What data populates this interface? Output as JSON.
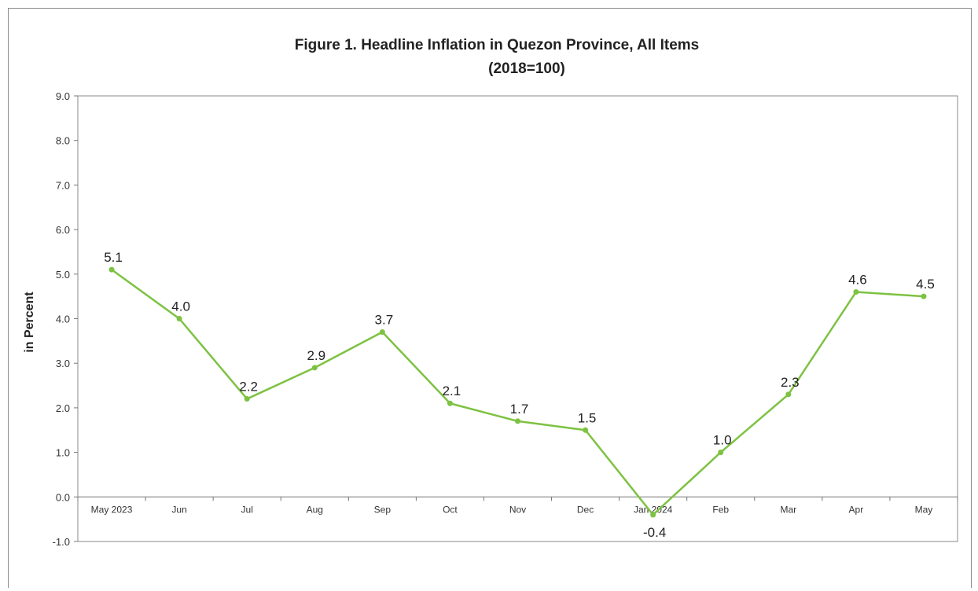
{
  "chart_data": {
    "type": "line",
    "title": "Figure 1. Headline Inflation in Quezon Province, All Items",
    "subtitle": "(2018=100)",
    "ylabel": "in Percent",
    "xlabel": "",
    "categories": [
      "May 2023",
      "Jun",
      "Jul",
      "Aug",
      "Sep",
      "Oct",
      "Nov",
      "Dec",
      "Jan 2024",
      "Feb",
      "Mar",
      "Apr",
      "May"
    ],
    "series": [
      {
        "values": [
          5.1,
          4.0,
          2.2,
          2.9,
          3.7,
          2.1,
          1.7,
          1.5,
          -0.4,
          1.0,
          2.3,
          4.6,
          4.5
        ],
        "data_labels": [
          "5.1",
          "4.0",
          "2.2",
          "2.9",
          "3.7",
          "2.1",
          "1.7",
          "1.5",
          "-0.4",
          "1.0",
          "2.3",
          "4.6",
          "4.5"
        ],
        "color": "#7dc242"
      }
    ],
    "ylim": [
      -1.0,
      9.0
    ],
    "yticks": [
      "-1.0",
      "0.0",
      "1.0",
      "2.0",
      "3.0",
      "4.0",
      "5.0",
      "6.0",
      "7.0",
      "8.0",
      "9.0"
    ],
    "grid": false,
    "legend": "none"
  }
}
